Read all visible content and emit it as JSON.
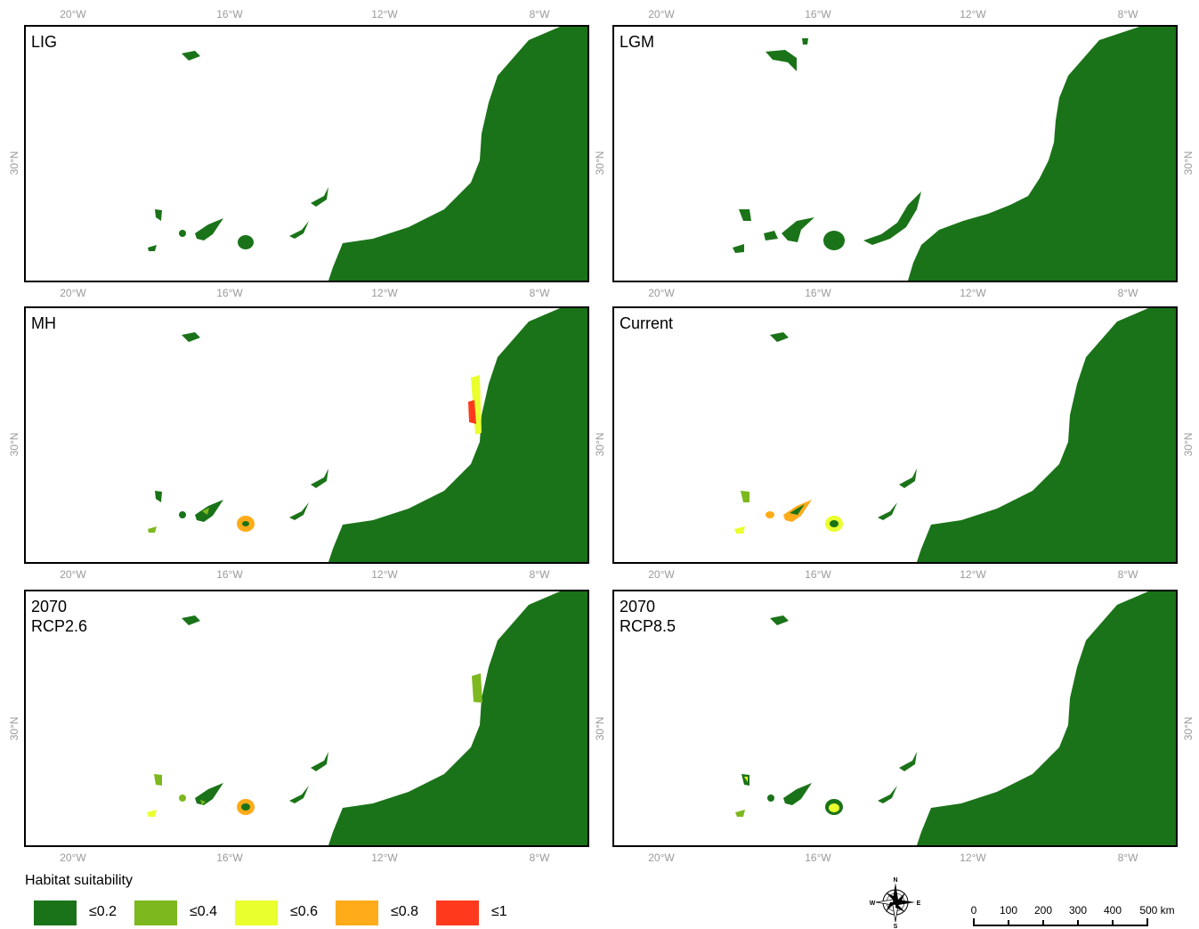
{
  "panels": [
    {
      "line1": "LIG",
      "line2": ""
    },
    {
      "line1": "LGM",
      "line2": ""
    },
    {
      "line1": "MH",
      "line2": ""
    },
    {
      "line1": "Current",
      "line2": ""
    },
    {
      "line1": "2070",
      "line2": "RCP2.6"
    },
    {
      "line1": "2070",
      "line2": "RCP8.5"
    }
  ],
  "longitude_ticks": [
    "20°W",
    "16°W",
    "12°W",
    "8°W"
  ],
  "latitude_tick": "30°N",
  "legend": {
    "title": "Habitat suitability",
    "classes": [
      {
        "label": "≤0.2",
        "color": "#1a7318"
      },
      {
        "label": "≤0.4",
        "color": "#7cb81e"
      },
      {
        "label": "≤0.6",
        "color": "#eaff2e"
      },
      {
        "label": "≤0.8",
        "color": "#ffab1a"
      },
      {
        "label": "≤1",
        "color": "#ff3a1c"
      }
    ]
  },
  "compass": {
    "n": "N",
    "s": "S",
    "e": "E",
    "w": "W"
  },
  "scale_bar": {
    "ticks": [
      "0",
      "100",
      "200",
      "300",
      "400",
      "500 km"
    ]
  },
  "colors": {
    "land": "#1a7318",
    "border": "#000000",
    "tick_text": "#9a9a9a"
  }
}
